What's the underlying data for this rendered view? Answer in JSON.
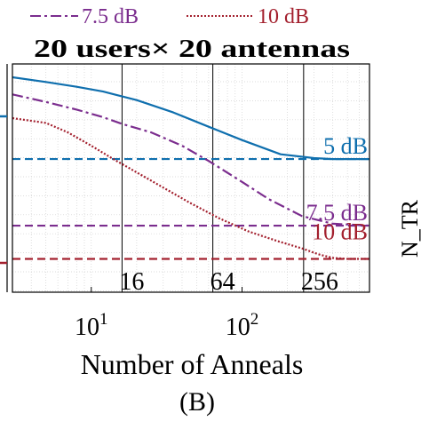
{
  "chart_data": {
    "type": "line",
    "title": "20 users× 20 antennas",
    "xlabel": "Number of Anneals",
    "panel_label": "(B)",
    "x_scale": "log",
    "xlim": [
      3,
      700
    ],
    "x_ticks": [
      {
        "value": 10,
        "base": "10",
        "exp": "1"
      },
      {
        "value": 100,
        "base": "10",
        "exp": "2"
      }
    ],
    "vlines": [
      {
        "x": 16,
        "label": "16"
      },
      {
        "x": 64,
        "label": "64"
      },
      {
        "x": 256,
        "label": "256"
      }
    ],
    "legend": [
      {
        "label": "7.5 dB",
        "color": "#7b2d8e",
        "style": "dashdot"
      },
      {
        "label": "10 dB",
        "color": "#a3202e",
        "style": "dotted"
      }
    ],
    "series": [
      {
        "key": "5",
        "label": "5 dB",
        "color": "#0f6fae",
        "style": "solid",
        "x": [
          3,
          5,
          8,
          12,
          20,
          35,
          60,
          100,
          180,
          300,
          400,
          700
        ],
        "y": [
          0.93,
          0.905,
          0.88,
          0.855,
          0.81,
          0.745,
          0.67,
          0.6,
          0.525,
          0.505,
          0.5,
          0.5
        ]
      },
      {
        "key": "7.5",
        "label": "7.5 dB",
        "color": "#7b2d8e",
        "style": "dashdot",
        "x": [
          3,
          5,
          8,
          12,
          16,
          25,
          40,
          60,
          100,
          150,
          250,
          400,
          700
        ],
        "y": [
          0.84,
          0.8,
          0.76,
          0.72,
          0.685,
          0.64,
          0.57,
          0.49,
          0.38,
          0.29,
          0.2,
          0.16,
          0.15
        ]
      },
      {
        "key": "10",
        "label": "10 dB",
        "color": "#a3202e",
        "style": "dotted",
        "x": [
          3,
          5,
          7,
          10,
          14,
          20,
          30,
          45,
          70,
          110,
          170,
          250,
          320,
          400,
          500,
          700
        ],
        "y": [
          0.715,
          0.69,
          0.64,
          0.57,
          0.5,
          0.43,
          0.35,
          0.27,
          0.19,
          0.12,
          0.07,
          0.03,
          0.0,
          -0.02,
          -0.025,
          -0.025
        ]
      }
    ],
    "hlines": [
      {
        "key": "5",
        "label": "5 dB",
        "color": "#0f6fae",
        "y": 0.5
      },
      {
        "key": "7.5",
        "label": "7.5 dB",
        "color": "#7b2d8e",
        "y": 0.15
      },
      {
        "key": "10",
        "label": "10 dB",
        "color": "#a3202e",
        "y": -0.025
      }
    ],
    "ylim": [
      -0.2,
      1.0
    ],
    "grid": true
  }
}
